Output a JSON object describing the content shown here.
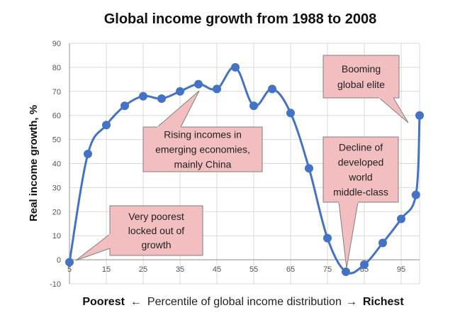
{
  "chart_data": {
    "type": "line",
    "title": "Global income growth from 1988 to 2008",
    "ylabel": "Real income growth, %",
    "xlabel": {
      "left": "Poorest",
      "left_arrow": "←",
      "middle": "Percentile of global income distribution",
      "right_arrow": "→",
      "right": "Richest"
    },
    "xlim": [
      5,
      100
    ],
    "ylim": [
      -10,
      90
    ],
    "x_ticks": [
      "5",
      "15",
      "25",
      "35",
      "45",
      "55",
      "65",
      "75",
      "85",
      "95"
    ],
    "y_ticks": [
      "-10",
      "0",
      "10",
      "20",
      "30",
      "40",
      "50",
      "60",
      "70",
      "80",
      "90"
    ],
    "grid": "horizontal and vertical",
    "series": [
      {
        "color": "#4472C4",
        "x": [
          5,
          10,
          15,
          20,
          25,
          30,
          35,
          40,
          45,
          50,
          55,
          60,
          65,
          70,
          75,
          80,
          85,
          90,
          95,
          99,
          100
        ],
        "values": [
          -1,
          44,
          56,
          64,
          68,
          67,
          70,
          73,
          71,
          80,
          64,
          71,
          61,
          38,
          9,
          -5,
          -2,
          7,
          17,
          27,
          60
        ]
      }
    ],
    "annotations": [
      {
        "id": "ann-poorest",
        "lines": [
          "Very poorest",
          "locked out of",
          "growth"
        ]
      },
      {
        "id": "ann-emerging",
        "lines": [
          "Rising incomes in",
          "emerging economies,",
          "mainly China"
        ]
      },
      {
        "id": "ann-middle",
        "lines": [
          "Decline of",
          "developed",
          "world",
          "middle-class"
        ]
      },
      {
        "id": "ann-elite",
        "lines": [
          "Booming",
          "global elite"
        ]
      }
    ],
    "colors": {
      "callout_fill": "#F2BEC0",
      "callout_stroke": "#7F7F7F",
      "grid": "#D9D9D9",
      "axis": "#A6A6A6"
    }
  }
}
